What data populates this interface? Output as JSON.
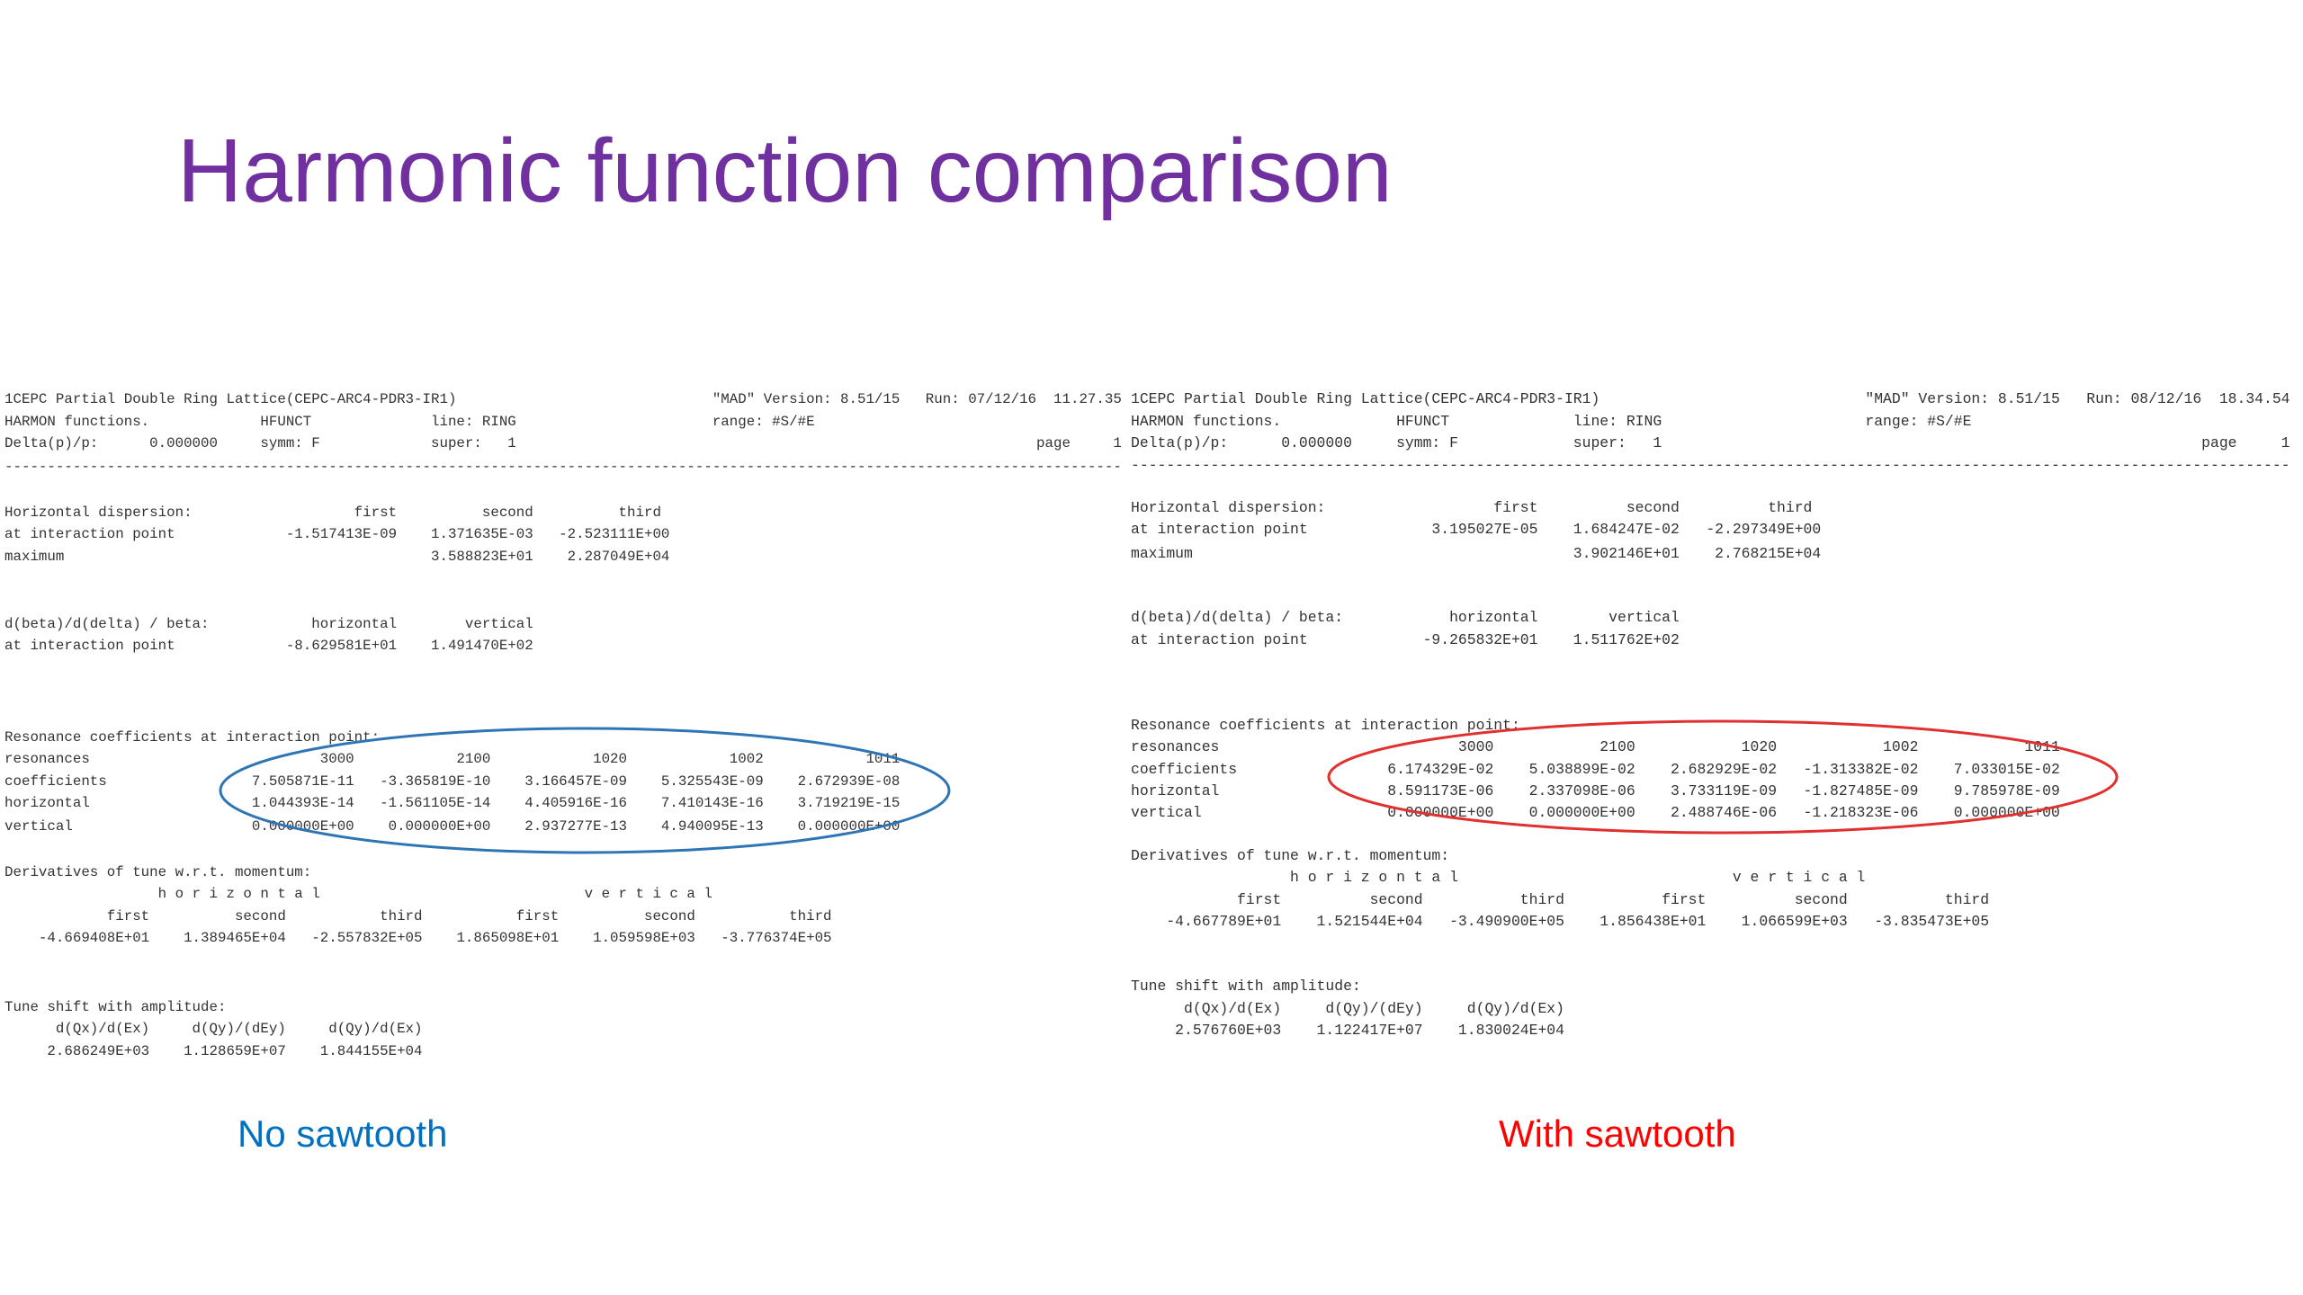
{
  "title": "Harmonic function comparison",
  "panels": [
    {
      "caption": "No sawtooth",
      "lines": [
        "1CEPC Partial Double Ring Lattice(CEPC-ARC4-PDR3-IR1)                              \"MAD\" Version: 8.51/15   Run: 07/12/16  11.27.35",
        "HARMON functions.             HFUNCT              line: RING                       range: #S/#E",
        "Delta(p)/p:      0.000000     symm: F             super:   1                                                             page     1",
        "-----------------------------------------------------------------------------------------------------------------------------------",
        "Horizontal dispersion:                   first          second          third",
        "at interaction point             -1.517413E-09    1.371635E-03   -2.523111E+00",
        "maximum                                           3.588823E+01    2.287049E+04",
        "d(beta)/d(delta) / beta:            horizontal        vertical",
        "at interaction point             -8.629581E+01    1.491470E+02",
        "Resonance coefficients at interaction point:",
        "resonances                           3000            2100            1020            1002            1011",
        "coefficients                 7.505871E-11   -3.365819E-10    3.166457E-09    5.325543E-09    2.672939E-08",
        "horizontal                   1.044393E-14   -1.561105E-14    4.405916E-16    7.410143E-16    3.719219E-15",
        "vertical                     0.000000E+00    0.000000E+00    2.937277E-13    4.940095E-13    0.000000E+00",
        "Derivatives of tune w.r.t. momentum:",
        "                  h o r i z o n t a l                               v e r t i c a l",
        "            first          second           third           first          second           third",
        "    -4.669408E+01    1.389465E+04   -2.557832E+05    1.865098E+01    1.059598E+03   -3.776374E+05",
        "Tune shift with amplitude:",
        "      d(Qx)/d(Ex)     d(Qy)/(dEy)     d(Qy)/d(Ex)",
        "     2.686249E+03    1.128659E+07    1.844155E+04"
      ]
    },
    {
      "caption": "With sawtooth",
      "lines": [
        "1CEPC Partial Double Ring Lattice(CEPC-ARC4-PDR3-IR1)                              \"MAD\" Version: 8.51/15   Run: 08/12/16  18.34.54",
        "HARMON functions.             HFUNCT              line: RING                       range: #S/#E",
        "Delta(p)/p:      0.000000     symm: F             super:   1                                                             page     1",
        "-----------------------------------------------------------------------------------------------------------------------------------",
        "Horizontal dispersion:                   first          second          third",
        "at interaction point              3.195027E-05    1.684247E-02   -2.297349E+00",
        "maximum                                           3.902146E+01    2.768215E+04",
        "d(beta)/d(delta) / beta:            horizontal        vertical",
        "at interaction point             -9.265832E+01    1.511762E+02",
        "Resonance coefficients at interaction point:",
        "resonances                           3000            2100            1020            1002            1011",
        "coefficients                 6.174329E-02    5.038899E-02    2.682929E-02   -1.313382E-02    7.033015E-02",
        "horizontal                   8.591173E-06    2.337098E-06    3.733119E-09   -1.827485E-09    9.785978E-09",
        "vertical                     0.000000E+00    0.000000E+00    2.488746E-06   -1.218323E-06    0.000000E+00",
        "Derivatives of tune w.r.t. momentum:",
        "                  h o r i z o n t a l                               v e r t i c a l",
        "            first          second           third           first          second           third",
        "    -4.667789E+01    1.521544E+04   -3.490900E+05    1.856438E+01    1.066599E+03   -3.835473E+05",
        "Tune shift with amplitude:",
        "      d(Qx)/d(Ex)     d(Qy)/(dEy)     d(Qy)/d(Ex)",
        "     2.576760E+03    1.122417E+07    1.830024E+04"
      ]
    }
  ]
}
